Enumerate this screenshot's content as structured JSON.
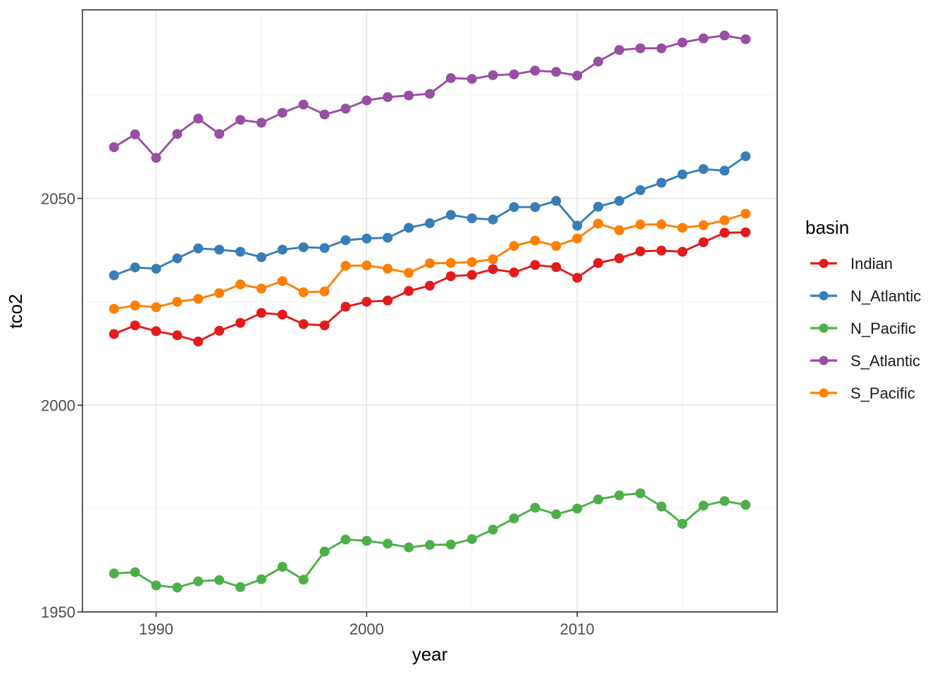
{
  "chart_data": {
    "type": "line",
    "title": "",
    "xlabel": "year",
    "ylabel": "tco2",
    "x": [
      1988,
      1989,
      1990,
      1991,
      1992,
      1993,
      1994,
      1995,
      1996,
      1997,
      1998,
      1999,
      2000,
      2001,
      2002,
      2003,
      2004,
      2005,
      2006,
      2007,
      2008,
      2009,
      2010,
      2011,
      2012,
      2013,
      2014,
      2015,
      2016,
      2017,
      2018
    ],
    "series": [
      {
        "name": "Indian",
        "color": "#e41a1c",
        "values": [
          2017.2,
          2019.3,
          2017.9,
          2016.9,
          2015.4,
          2018.0,
          2019.9,
          2022.3,
          2021.9,
          2019.6,
          2019.3,
          2023.8,
          2025.0,
          2025.3,
          2027.6,
          2028.9,
          2031.2,
          2031.5,
          2032.9,
          2032.1,
          2033.9,
          2033.4,
          2030.8,
          2034.4,
          2035.5,
          2037.2,
          2037.4,
          2037.1,
          2039.4,
          2041.7,
          2041.8
        ]
      },
      {
        "name": "N_Atlantic",
        "color": "#377eb8",
        "values": [
          2031.4,
          2033.3,
          2033.0,
          2035.5,
          2037.9,
          2037.6,
          2037.1,
          2035.8,
          2037.6,
          2038.2,
          2038.0,
          2039.9,
          2040.3,
          2040.5,
          2042.9,
          2044.0,
          2046.0,
          2045.2,
          2044.9,
          2047.9,
          2047.9,
          2049.4,
          2043.4,
          2048.0,
          2049.4,
          2052.0,
          2053.8,
          2055.8,
          2057.1,
          2056.7,
          2060.2
        ]
      },
      {
        "name": "N_Pacific",
        "color": "#4daf4a",
        "values": [
          1959.3,
          1959.6,
          1956.4,
          1955.9,
          1957.4,
          1957.7,
          1956.0,
          1957.9,
          1960.9,
          1957.8,
          1964.6,
          1967.5,
          1967.2,
          1966.5,
          1965.6,
          1966.2,
          1966.3,
          1967.6,
          1969.9,
          1972.6,
          1975.2,
          1973.6,
          1975.0,
          1977.2,
          1978.2,
          1978.7,
          1975.5,
          1971.3,
          1975.7,
          1976.8,
          1975.9
        ]
      },
      {
        "name": "S_Atlantic",
        "color": "#984ea3",
        "values": [
          2062.4,
          2065.5,
          2059.8,
          2065.6,
          2069.3,
          2065.6,
          2069.0,
          2068.3,
          2070.7,
          2072.7,
          2070.3,
          2071.7,
          2073.7,
          2074.5,
          2074.9,
          2075.3,
          2079.1,
          2078.9,
          2079.8,
          2080.0,
          2080.9,
          2080.6,
          2079.7,
          2083.1,
          2085.9,
          2086.3,
          2086.3,
          2087.7,
          2088.7,
          2089.4,
          2088.5
        ]
      },
      {
        "name": "S_Pacific",
        "color": "#ff7f00",
        "values": [
          2023.3,
          2024.1,
          2023.7,
          2025.0,
          2025.7,
          2027.1,
          2029.2,
          2028.2,
          2030.0,
          2027.3,
          2027.5,
          2033.7,
          2033.8,
          2033.0,
          2032.0,
          2034.3,
          2034.4,
          2034.6,
          2035.3,
          2038.5,
          2039.8,
          2038.5,
          2040.3,
          2043.9,
          2042.3,
          2043.7,
          2043.7,
          2042.9,
          2043.5,
          2044.7,
          2046.3
        ]
      }
    ],
    "x_ticks": [
      "1990",
      "2000",
      "2010"
    ],
    "x_tick_values": [
      1990,
      2000,
      2010
    ],
    "y_ticks": [
      "1950",
      "2000",
      "2050"
    ],
    "y_tick_values": [
      1950,
      2000,
      2050
    ],
    "x_minor_values": [
      1995,
      2005,
      2015
    ],
    "y_minor_values": [
      1975,
      2025,
      2075
    ],
    "xlim": [
      1986.5,
      2019.5
    ],
    "ylim": [
      1950.0,
      2095.6
    ],
    "grid": true,
    "legend": {
      "title": "basin",
      "position": "right",
      "entries": [
        "Indian",
        "N_Atlantic",
        "N_Pacific",
        "S_Atlantic",
        "S_Pacific"
      ]
    },
    "style": {
      "panel_border": "#333333",
      "grid_major": "#e3e3e3",
      "grid_minor": "#f0f0f0",
      "tick_color": "#333333",
      "tick_label_color": "#4d4d4d",
      "axis_title_color": "#000000",
      "legend_title_color": "#000000",
      "legend_label_color": "#1a1a1a",
      "background": "#ffffff"
    }
  }
}
